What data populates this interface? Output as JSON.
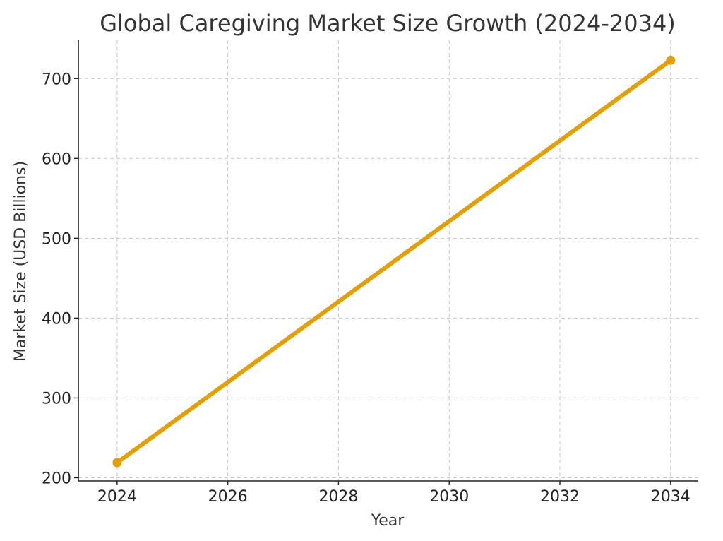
{
  "chart_data": {
    "type": "line",
    "title": "Global Caregiving Market Size Growth (2024-2034)",
    "xlabel": "Year",
    "ylabel": "Market Size (USD Billions)",
    "xlim": [
      2023.3,
      2034.5
    ],
    "ylim": [
      196,
      748
    ],
    "x_ticks": [
      2024,
      2026,
      2028,
      2030,
      2032,
      2034
    ],
    "y_ticks": [
      200,
      300,
      400,
      500,
      600,
      700
    ],
    "grid": true,
    "series": [
      {
        "color": "#E69F00",
        "x": [
          2024,
          2034
        ],
        "y": [
          219,
          723
        ]
      }
    ]
  }
}
